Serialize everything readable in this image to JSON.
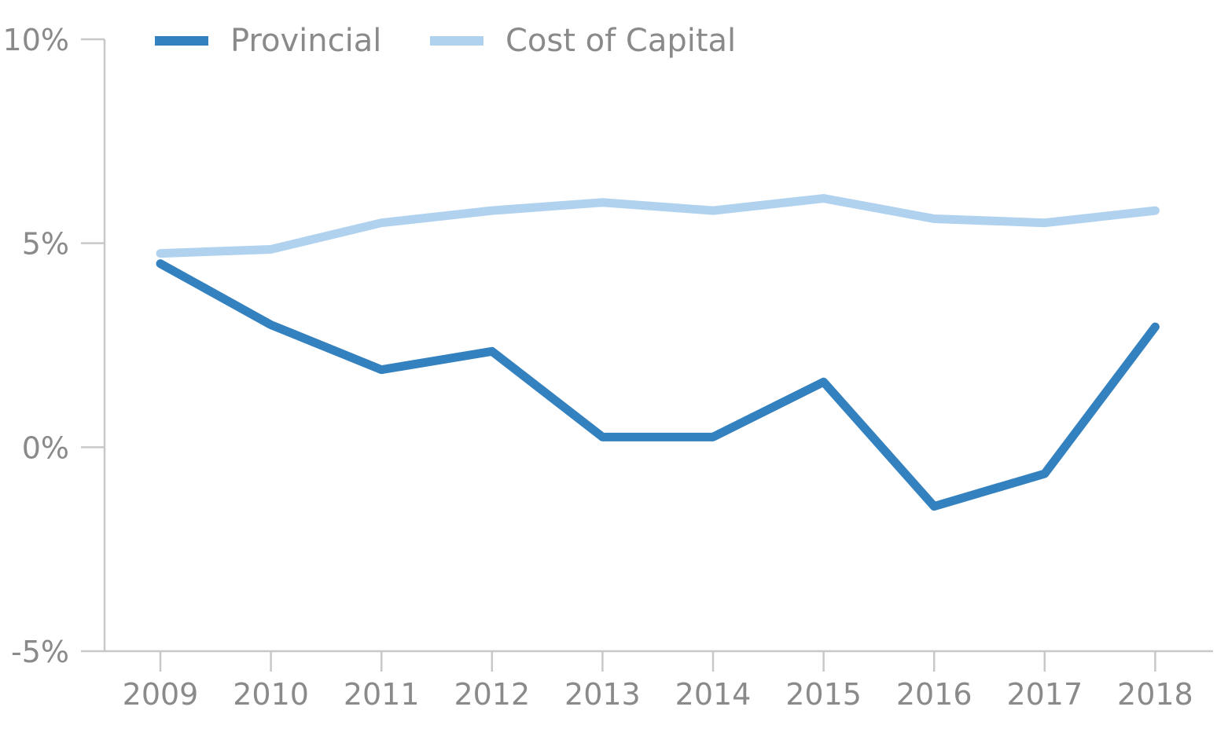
{
  "chart_data": {
    "type": "line",
    "title": "",
    "xlabel": "",
    "ylabel": "",
    "categories": [
      "2009",
      "2010",
      "2011",
      "2012",
      "2013",
      "2014",
      "2015",
      "2016",
      "2017",
      "2018"
    ],
    "series": [
      {
        "name": "Provincial",
        "color": "#3481bf",
        "values": [
          4.5,
          3.0,
          1.9,
          2.35,
          0.25,
          0.25,
          1.6,
          -1.45,
          -0.65,
          2.95
        ]
      },
      {
        "name": "Cost of Capital",
        "color": "#b0d2ef",
        "values": [
          4.75,
          4.85,
          5.5,
          5.8,
          6.0,
          5.8,
          6.1,
          5.6,
          5.5,
          5.8
        ]
      }
    ],
    "ylim": [
      -5,
      10
    ],
    "yticks": [
      10,
      5,
      0,
      -5
    ],
    "ytick_labels": [
      "10%",
      "5%",
      "0%",
      "-5%"
    ],
    "grid": false,
    "legend_position": "top-left"
  }
}
